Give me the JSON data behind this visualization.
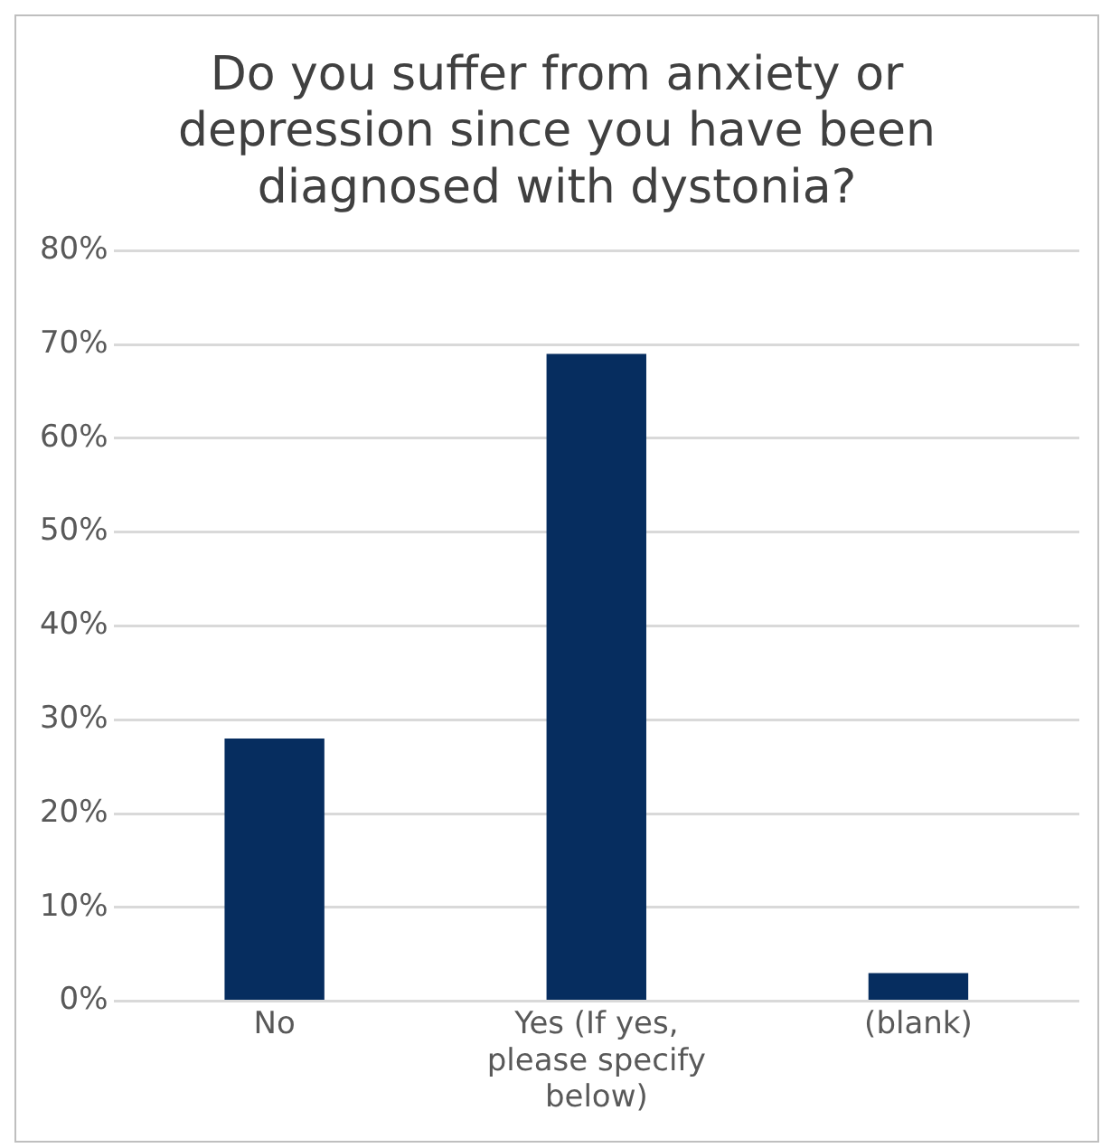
{
  "chart_data": {
    "type": "bar",
    "title": "Do you suffer from anxiety or depression since you have been diagnosed with dystonia?",
    "categories": [
      "No",
      "Yes (If yes, please specify below)",
      "(blank)"
    ],
    "values": [
      0.28,
      0.69,
      0.03
    ],
    "color": "#062d5f",
    "ylim": [
      0,
      0.8
    ],
    "yticks": [
      {
        "value": 0,
        "label": "0%"
      },
      {
        "value": 0.1,
        "label": "10%"
      },
      {
        "value": 0.2,
        "label": "20%"
      },
      {
        "value": 0.3,
        "label": "30%"
      },
      {
        "value": 0.4,
        "label": "40%"
      },
      {
        "value": 0.5,
        "label": "50%"
      },
      {
        "value": 0.6,
        "label": "60%"
      },
      {
        "value": 0.7,
        "label": "70%"
      },
      {
        "value": 0.8,
        "label": "80%"
      }
    ],
    "grid": "y",
    "legend": false
  }
}
